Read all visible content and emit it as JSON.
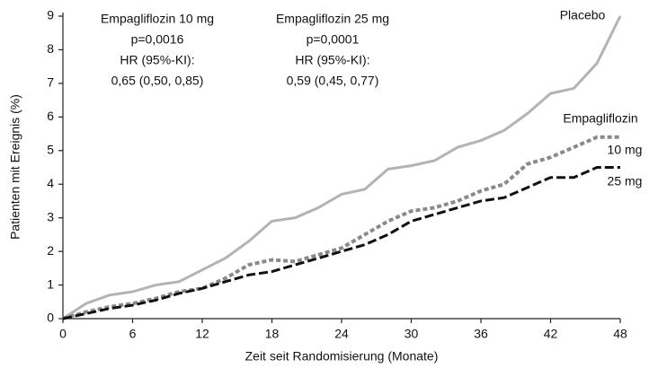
{
  "chart_data": {
    "type": "line",
    "x_label": "Zeit seit Randomisierung (Monate)",
    "y_label": "Patienten mit Ereignis (%)",
    "x": [
      0,
      2,
      4,
      6,
      8,
      10,
      12,
      14,
      16,
      18,
      20,
      22,
      24,
      26,
      28,
      30,
      32,
      34,
      36,
      38,
      40,
      42,
      44,
      46,
      48
    ],
    "series": [
      {
        "name": "Placebo",
        "color": "#b3b3b3",
        "style": "solid",
        "values": [
          0,
          0.45,
          0.7,
          0.8,
          1.0,
          1.1,
          1.45,
          1.8,
          2.3,
          2.9,
          3.0,
          3.3,
          3.7,
          3.85,
          4.45,
          4.55,
          4.7,
          5.1,
          5.3,
          5.6,
          6.1,
          6.7,
          6.85,
          7.6,
          9.0
        ]
      },
      {
        "name": "10 mg",
        "color": "#8a8a8a",
        "style": "dotted",
        "values": [
          0,
          0.2,
          0.35,
          0.45,
          0.6,
          0.8,
          0.9,
          1.2,
          1.6,
          1.75,
          1.7,
          1.9,
          2.1,
          2.5,
          2.9,
          3.2,
          3.3,
          3.5,
          3.8,
          4.0,
          4.6,
          4.8,
          5.1,
          5.4,
          5.4
        ]
      },
      {
        "name": "25 mg",
        "color": "#111111",
        "style": "dashed",
        "values": [
          0,
          0.15,
          0.3,
          0.4,
          0.55,
          0.75,
          0.9,
          1.1,
          1.3,
          1.4,
          1.6,
          1.8,
          2.0,
          2.2,
          2.5,
          2.9,
          3.1,
          3.3,
          3.5,
          3.6,
          3.9,
          4.2,
          4.2,
          4.5,
          4.5
        ]
      }
    ],
    "series_group_label": "Empagliflozin",
    "annotations": [
      {
        "lines": [
          "Empagliflozin 10 mg",
          "p=0,0016",
          "HR (95%-KI):",
          "0,65 (0,50, 0,85)"
        ]
      },
      {
        "lines": [
          "Empagliflozin 25 mg",
          "p=0,0001",
          "HR (95%-KI):",
          "0,59 (0,45, 0,77)"
        ]
      }
    ],
    "xlim": [
      0,
      48
    ],
    "xticks": [
      0,
      6,
      12,
      18,
      24,
      30,
      36,
      42,
      48
    ],
    "ylim": [
      0,
      9
    ],
    "yticks": [
      0,
      1,
      2,
      3,
      4,
      5,
      6,
      7,
      8,
      9
    ],
    "grid": false
  }
}
